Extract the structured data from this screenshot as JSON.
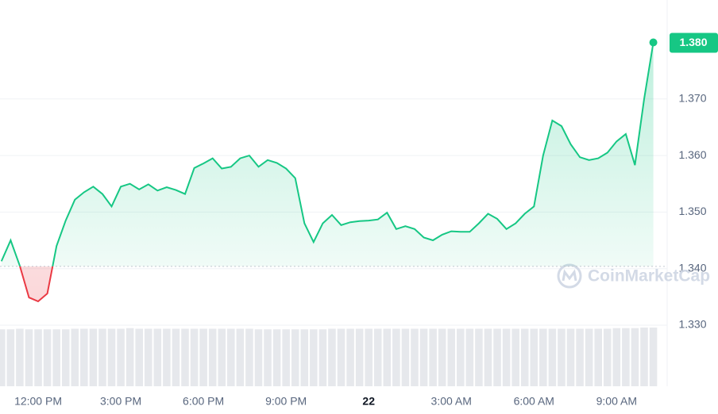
{
  "chart_data": {
    "type": "line",
    "categories": [
      null,
      null,
      null,
      null,
      "12:00 PM",
      null,
      null,
      null,
      null,
      null,
      null,
      null,
      null,
      "3:00 PM",
      null,
      null,
      null,
      null,
      null,
      null,
      null,
      null,
      "6:00 PM",
      null,
      null,
      null,
      null,
      null,
      null,
      null,
      null,
      "9:00 PM",
      null,
      null,
      null,
      null,
      null,
      null,
      null,
      null,
      "22",
      null,
      null,
      null,
      null,
      null,
      null,
      null,
      null,
      "3:00 AM",
      null,
      null,
      null,
      null,
      null,
      null,
      null,
      null,
      "6:00 AM",
      null,
      null,
      null,
      null,
      null,
      null,
      null,
      null,
      "9:00 AM",
      null,
      null,
      null,
      null
    ],
    "values": [
      1.3413,
      1.345,
      1.3405,
      1.3349,
      1.3342,
      1.3356,
      1.344,
      1.3485,
      1.3522,
      1.3535,
      1.3545,
      1.3532,
      1.351,
      1.3545,
      1.355,
      1.354,
      1.3549,
      1.3538,
      1.3544,
      1.3539,
      1.3532,
      1.3578,
      1.3586,
      1.3595,
      1.3577,
      1.358,
      1.3595,
      1.36,
      1.358,
      1.3592,
      1.3587,
      1.3577,
      1.356,
      1.348,
      1.3447,
      1.348,
      1.3495,
      1.3477,
      1.3482,
      1.3484,
      1.3485,
      1.3487,
      1.3499,
      1.347,
      1.3475,
      1.347,
      1.3455,
      1.345,
      1.346,
      1.3466,
      1.3465,
      1.3465,
      1.348,
      1.3497,
      1.3488,
      1.347,
      1.348,
      1.3497,
      1.351,
      1.36,
      1.3662,
      1.3652,
      1.362,
      1.3597,
      1.3592,
      1.3595,
      1.3605,
      1.3625,
      1.3638,
      1.3583,
      1.37,
      1.38
    ],
    "value_labels": [
      null,
      null,
      null,
      null,
      null,
      null,
      null,
      null,
      null,
      null,
      null,
      null,
      null,
      null,
      null,
      null,
      null,
      null,
      null,
      null,
      null,
      null,
      null,
      null,
      null,
      null,
      null,
      null,
      null,
      null,
      null,
      null,
      null,
      null,
      null,
      null,
      null,
      null,
      null,
      null,
      null,
      null,
      null,
      null,
      null,
      null,
      null,
      null,
      null,
      null,
      null,
      null,
      null,
      null,
      null,
      null,
      null,
      null,
      null,
      null,
      null,
      null,
      null,
      null,
      null,
      null,
      null,
      null,
      null,
      null,
      null,
      "1.380"
    ],
    "up_color": "#16c784",
    "down_color": "#ea3943",
    "reference_line": 1.3404,
    "ylim": [
      1.3192,
      1.3875
    ],
    "yticks": [
      {
        "value": 1.33,
        "label": "1.330"
      },
      {
        "value": 1.34,
        "label": "1.340"
      },
      {
        "value": 1.35,
        "label": "1.350"
      },
      {
        "value": 1.36,
        "label": "1.360"
      },
      {
        "value": 1.37,
        "label": "1.370"
      }
    ],
    "grid": true,
    "volume": [
      97,
      97,
      98,
      97,
      97,
      97,
      97,
      97,
      98,
      98,
      98,
      98,
      98,
      98,
      99,
      98,
      98,
      98,
      98,
      98,
      98,
      98,
      98,
      98,
      98,
      98,
      98,
      98,
      97,
      97,
      97,
      97,
      97,
      97,
      97,
      97,
      98,
      98,
      98,
      98,
      98,
      98,
      98,
      98,
      98,
      98,
      98,
      98,
      98,
      98,
      98,
      98,
      98,
      98,
      98,
      98,
      98,
      98,
      98,
      98,
      98,
      98,
      98,
      98,
      98,
      98,
      98,
      99,
      99,
      99,
      100,
      100
    ],
    "volume_lim": [
      0,
      100
    ],
    "watermark": "CoinMarketCap"
  }
}
